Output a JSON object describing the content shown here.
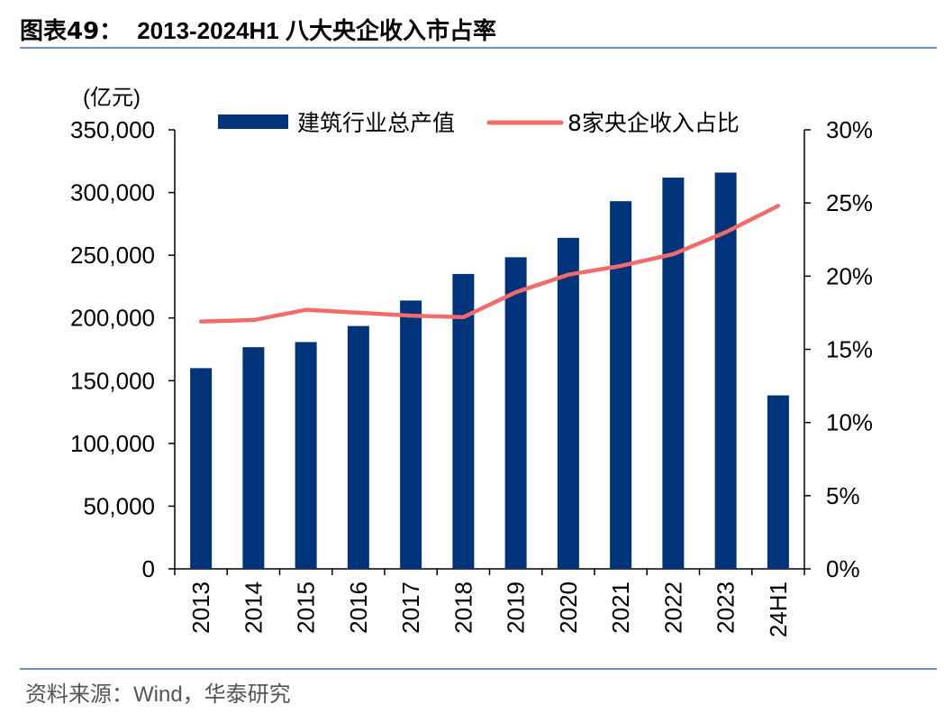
{
  "header": {
    "label": "图表49：",
    "title": "2013-2024H1 八大央企收入市占率"
  },
  "footer": {
    "source": "资料来源：Wind，华泰研究"
  },
  "chart_data": {
    "type": "bar+line",
    "categories": [
      "2013",
      "2014",
      "2015",
      "2016",
      "2017",
      "2018",
      "2019",
      "2020",
      "2021",
      "2022",
      "2023",
      "24H1"
    ],
    "left_unit": "(亿元)",
    "left_ticks": [
      "350,000",
      "300,000",
      "250,000",
      "200,000",
      "150,000",
      "100,000",
      "50,000",
      "0"
    ],
    "right_ticks": [
      "30%",
      "25%",
      "20%",
      "15%",
      "10%",
      "5%",
      "0%"
    ],
    "ylim_left": [
      0,
      350000
    ],
    "ylim_right": [
      0,
      30
    ],
    "legend_position": "top",
    "series": [
      {
        "name": "建筑行业总产值",
        "type": "bar",
        "axis": "left",
        "color": "#00347a",
        "values": [
          160000,
          176700,
          180800,
          193600,
          213900,
          235100,
          248400,
          263900,
          293100,
          311900,
          315900,
          138300
        ]
      },
      {
        "name": "8家央企收入占比",
        "type": "line",
        "axis": "right",
        "color": "#f26b6b",
        "values": [
          16.9,
          17.0,
          17.7,
          17.5,
          17.3,
          17.2,
          18.9,
          20.1,
          20.7,
          21.5,
          23.0,
          24.8
        ]
      }
    ]
  }
}
